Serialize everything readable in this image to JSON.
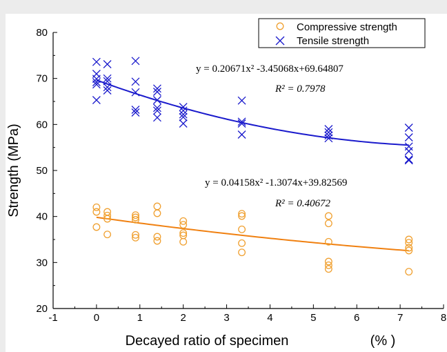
{
  "chart_data": {
    "type": "scatter",
    "xlabel": "Decayed ratio of specimen",
    "xunit": "(% )",
    "ylabel": "Strength (MPa)",
    "xlim": [
      -1,
      8
    ],
    "ylim": [
      20,
      80
    ],
    "x_ticks": [
      -1,
      0,
      1,
      2,
      3,
      4,
      5,
      6,
      7,
      8
    ],
    "y_ticks": [
      20,
      30,
      40,
      50,
      60,
      70,
      80
    ],
    "legend_position": "top-right",
    "series": [
      {
        "name": "Compressive strength",
        "marker": "circle",
        "color": "#f0a030",
        "points": [
          [
            0,
            42.0
          ],
          [
            0,
            41.0
          ],
          [
            0,
            37.7
          ],
          [
            0.25,
            41.0
          ],
          [
            0.25,
            40.2
          ],
          [
            0.25,
            39.5
          ],
          [
            0.25,
            36.1
          ],
          [
            0.9,
            40.3
          ],
          [
            0.9,
            39.8
          ],
          [
            0.9,
            39.3
          ],
          [
            0.9,
            36.0
          ],
          [
            0.9,
            35.4
          ],
          [
            1.4,
            42.2
          ],
          [
            1.4,
            40.7
          ],
          [
            1.4,
            35.6
          ],
          [
            1.4,
            34.7
          ],
          [
            2.0,
            39.0
          ],
          [
            2.0,
            38.2
          ],
          [
            2.0,
            36.4
          ],
          [
            2.0,
            35.9
          ],
          [
            2.0,
            34.5
          ],
          [
            3.35,
            40.6
          ],
          [
            3.35,
            40.1
          ],
          [
            3.35,
            37.2
          ],
          [
            3.35,
            34.2
          ],
          [
            3.35,
            32.2
          ],
          [
            5.35,
            40.1
          ],
          [
            5.35,
            38.5
          ],
          [
            5.35,
            34.5
          ],
          [
            5.35,
            30.2
          ],
          [
            5.35,
            29.4
          ],
          [
            5.35,
            28.6
          ],
          [
            7.2,
            35.0
          ],
          [
            7.2,
            34.3
          ],
          [
            7.2,
            33.2
          ],
          [
            7.2,
            32.6
          ],
          [
            7.2,
            28.0
          ]
        ],
        "fit": {
          "a": 0.04158,
          "b": -1.3074,
          "c": 39.82569,
          "equation": "y = 0.04158x² -1.3074x+39.82569",
          "r2": "R² = 0.40672"
        }
      },
      {
        "name": "Tensile strength",
        "marker": "x",
        "color": "#1a1acc",
        "points": [
          [
            0,
            73.6
          ],
          [
            0,
            71.0
          ],
          [
            0,
            69.9
          ],
          [
            0,
            69.2
          ],
          [
            0,
            68.7
          ],
          [
            0,
            65.3
          ],
          [
            0.25,
            73.1
          ],
          [
            0.25,
            70.0
          ],
          [
            0.25,
            69.4
          ],
          [
            0.25,
            68.1
          ],
          [
            0.25,
            67.4
          ],
          [
            0.9,
            73.8
          ],
          [
            0.9,
            69.3
          ],
          [
            0.9,
            67.0
          ],
          [
            0.9,
            63.2
          ],
          [
            0.9,
            62.6
          ],
          [
            1.4,
            67.8
          ],
          [
            1.4,
            67.1
          ],
          [
            1.4,
            65.3
          ],
          [
            1.4,
            63.6
          ],
          [
            1.4,
            63.0
          ],
          [
            1.4,
            61.5
          ],
          [
            2.0,
            63.8
          ],
          [
            2.0,
            63.0
          ],
          [
            2.0,
            62.2
          ],
          [
            2.0,
            61.6
          ],
          [
            2.0,
            60.2
          ],
          [
            3.35,
            65.2
          ],
          [
            3.35,
            60.6
          ],
          [
            3.35,
            60.2
          ],
          [
            3.35,
            57.8
          ],
          [
            5.35,
            59.0
          ],
          [
            5.35,
            58.3
          ],
          [
            5.35,
            57.6
          ],
          [
            5.35,
            57.0
          ],
          [
            7.2,
            59.3
          ],
          [
            7.2,
            57.2
          ],
          [
            7.2,
            55.2
          ],
          [
            7.2,
            54.2
          ],
          [
            7.2,
            52.4
          ],
          [
            7.2,
            52.2
          ]
        ],
        "fit": {
          "a": 0.20671,
          "b": -3.45068,
          "c": 69.64807,
          "equation": "y = 0.20671x² -3.45068x+69.64807",
          "r2": "R² = 0.7978"
        }
      }
    ]
  }
}
